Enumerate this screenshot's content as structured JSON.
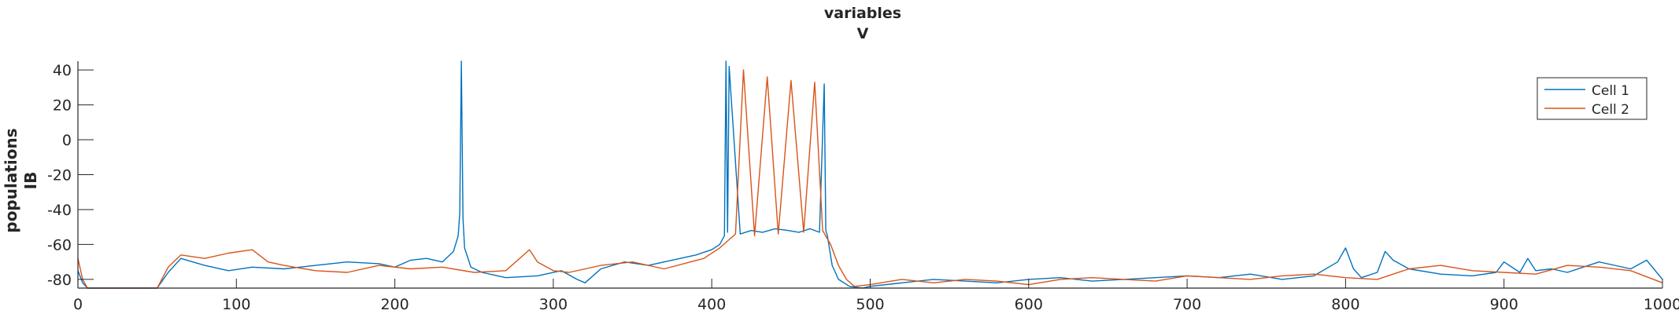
{
  "chart_data": {
    "type": "line",
    "title": [
      "variables",
      "V"
    ],
    "ylabel": [
      "populations",
      "IB"
    ],
    "xlabel": "",
    "xlim": [
      0,
      1000
    ],
    "ylim": [
      -85,
      45
    ],
    "xticks": [
      0,
      100,
      200,
      300,
      400,
      500,
      600,
      700,
      800,
      900,
      1000
    ],
    "yticks": [
      -80,
      -60,
      -40,
      -20,
      0,
      20,
      40
    ],
    "grid": false,
    "legend_position": "top-right",
    "series": [
      {
        "name": "Cell 1",
        "color": "#0072BD",
        "x": [
          0,
          3,
          6,
          50,
          57,
          65,
          80,
          95,
          110,
          130,
          150,
          170,
          190,
          200,
          210,
          220,
          230,
          237,
          240,
          241,
          242,
          243,
          244,
          248,
          255,
          270,
          290,
          305,
          315,
          320,
          330,
          345,
          360,
          375,
          390,
          400,
          405,
          408,
          409,
          410,
          411,
          418,
          425,
          432,
          440,
          448,
          455,
          462,
          468,
          471,
          472,
          473,
          476,
          480,
          487,
          495,
          500,
          520,
          540,
          560,
          580,
          600,
          620,
          640,
          660,
          680,
          700,
          720,
          740,
          760,
          780,
          795,
          800,
          805,
          810,
          820,
          825,
          830,
          840,
          860,
          880,
          895,
          900,
          910,
          915,
          920,
          930,
          940,
          950,
          960,
          980,
          990,
          1000
        ],
        "y": [
          -75,
          -82,
          -85,
          -85,
          -76,
          -68,
          -72,
          -75,
          -73,
          -74,
          -72,
          -70,
          -71,
          -73,
          -69,
          -68,
          -70,
          -64,
          -55,
          -42,
          45,
          -45,
          -62,
          -73,
          -76,
          -79,
          -78,
          -75,
          -80,
          -82,
          -74,
          -70,
          -72,
          -69,
          -66,
          -63,
          -60,
          -55,
          45,
          -53,
          42,
          -54,
          -52,
          -53,
          -51,
          -52,
          -53,
          -51,
          -53,
          32,
          -52,
          -55,
          -72,
          -80,
          -84,
          -85,
          -84,
          -82,
          -80,
          -81,
          -82,
          -80,
          -79,
          -81,
          -80,
          -79,
          -78,
          -79,
          -77,
          -80,
          -78,
          -70,
          -62,
          -74,
          -79,
          -76,
          -64,
          -69,
          -74,
          -77,
          -78,
          -76,
          -70,
          -76,
          -68,
          -75,
          -74,
          -76,
          -73,
          -70,
          -74,
          -69,
          -80
        ]
      },
      {
        "name": "Cell 2",
        "color": "#D95319",
        "x": [
          0,
          3,
          6,
          50,
          57,
          65,
          80,
          95,
          110,
          120,
          130,
          150,
          170,
          190,
          210,
          230,
          250,
          270,
          285,
          290,
          300,
          310,
          330,
          350,
          370,
          395,
          405,
          410,
          415,
          420,
          427,
          435,
          442,
          450,
          458,
          465,
          470,
          475,
          480,
          485,
          490,
          500,
          520,
          540,
          560,
          580,
          600,
          620,
          640,
          660,
          680,
          700,
          720,
          740,
          760,
          780,
          800,
          820,
          840,
          860,
          880,
          900,
          920,
          940,
          960,
          980,
          1000
        ],
        "y": [
          -68,
          -80,
          -85,
          -85,
          -73,
          -66,
          -68,
          -65,
          -63,
          -70,
          -72,
          -75,
          -76,
          -72,
          -74,
          -73,
          -76,
          -75,
          -63,
          -70,
          -75,
          -76,
          -72,
          -70,
          -74,
          -68,
          -62,
          -58,
          -54,
          40,
          -55,
          36,
          -54,
          34,
          -53,
          33,
          -52,
          -60,
          -72,
          -80,
          -84,
          -83,
          -80,
          -82,
          -80,
          -81,
          -83,
          -80,
          -79,
          -80,
          -81,
          -78,
          -79,
          -80,
          -78,
          -77,
          -79,
          -80,
          -74,
          -72,
          -75,
          -76,
          -77,
          -72,
          -73,
          -75,
          -82
        ]
      }
    ]
  }
}
